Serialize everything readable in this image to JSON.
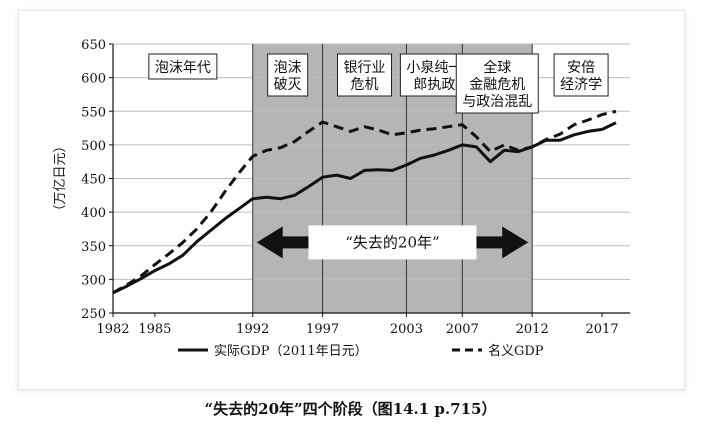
{
  "chart_data": {
    "type": "line",
    "x_unit": "year",
    "ylabel": "（万亿日元）",
    "ylim": [
      250,
      650
    ],
    "xlim": [
      1982,
      2019
    ],
    "y_ticks": [
      250,
      300,
      350,
      400,
      450,
      500,
      550,
      600,
      650
    ],
    "x_ticks": [
      1982,
      1985,
      1992,
      1997,
      2003,
      2007,
      2012,
      2017
    ],
    "grid": "horizontal",
    "shaded_range": [
      1992,
      2012
    ],
    "legend_position": "bottom",
    "periods": [
      {
        "label": "泡沫年代",
        "from": 1982,
        "to": 1992,
        "shaded": false
      },
      {
        "label": "泡沫\n破灭",
        "from": 1992,
        "to": 1997,
        "shaded": true
      },
      {
        "label": "银行业\n危机",
        "from": 1997,
        "to": 2003,
        "shaded": true
      },
      {
        "label": "小泉纯一\n郎执政",
        "from": 2003,
        "to": 2007,
        "shaded": true
      },
      {
        "label": "全球\n金融危机\n与政治混乱",
        "from": 2007,
        "to": 2012,
        "shaded": true
      },
      {
        "label": "安倍\n经济学",
        "from": 2012,
        "to": 2019,
        "shaded": false
      }
    ],
    "arrow_label": "“失去的20年”",
    "series": [
      {
        "name": "实际GDP（2011年日元）",
        "style": "solid",
        "x": [
          1982,
          1983,
          1984,
          1985,
          1986,
          1987,
          1988,
          1989,
          1990,
          1991,
          1992,
          1993,
          1994,
          1995,
          1996,
          1997,
          1998,
          1999,
          2000,
          2001,
          2002,
          2003,
          2004,
          2005,
          2006,
          2007,
          2008,
          2009,
          2010,
          2011,
          2012,
          2013,
          2014,
          2015,
          2016,
          2017,
          2018
        ],
        "values": [
          280,
          290,
          301,
          313,
          323,
          336,
          356,
          373,
          390,
          405,
          420,
          422,
          420,
          425,
          438,
          452,
          455,
          450,
          462,
          463,
          462,
          470,
          480,
          485,
          492,
          500,
          497,
          475,
          492,
          490,
          497,
          507,
          507,
          515,
          520,
          523,
          533
        ]
      },
      {
        "name": "名义GDP",
        "style": "dashed",
        "x": [
          1982,
          1983,
          1984,
          1985,
          1986,
          1987,
          1988,
          1989,
          1990,
          1991,
          1992,
          1993,
          1994,
          1995,
          1996,
          1997,
          1998,
          1999,
          2000,
          2001,
          2002,
          2003,
          2004,
          2005,
          2006,
          2007,
          2008,
          2009,
          2010,
          2011,
          2012,
          2013,
          2014,
          2015,
          2016,
          2017,
          2018
        ],
        "values": [
          280,
          292,
          305,
          322,
          338,
          355,
          375,
          400,
          430,
          458,
          483,
          492,
          496,
          505,
          520,
          534,
          527,
          520,
          527,
          522,
          515,
          518,
          522,
          524,
          527,
          530,
          512,
          490,
          500,
          492,
          497,
          508,
          516,
          530,
          537,
          545,
          550
        ]
      }
    ]
  },
  "caption": "“失去的20年”四个阶段（图14.1  p.715）",
  "colors": {
    "shade": "#b5b5b5",
    "line": "#111111",
    "grid": "#bdbdbd"
  }
}
